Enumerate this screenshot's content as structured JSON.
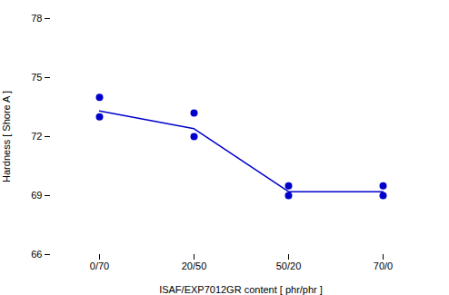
{
  "chart_data": {
    "type": "line",
    "xlabel": "ISAF/EXP7012GR content [ phr/phr ]",
    "ylabel": "Hardness [ Shore A ]",
    "categories": [
      "0/70",
      "20/50",
      "50/20",
      "70/0"
    ],
    "series": [
      {
        "type": "line",
        "color": "#0000cc",
        "line_style": "solid",
        "values": [
          73.3,
          72.4,
          69.2,
          69.2
        ]
      },
      {
        "type": "scatter",
        "color": "#0000cc",
        "marker": "circle",
        "values": [
          [
            74.0,
            73.0
          ],
          [
            73.2,
            72.0
          ],
          [
            69.5,
            69.0
          ],
          [
            69.5,
            69.0
          ]
        ]
      }
    ],
    "ylim": [
      66,
      78
    ],
    "yticks": [
      66,
      69,
      72,
      75,
      78
    ],
    "grid": false
  }
}
